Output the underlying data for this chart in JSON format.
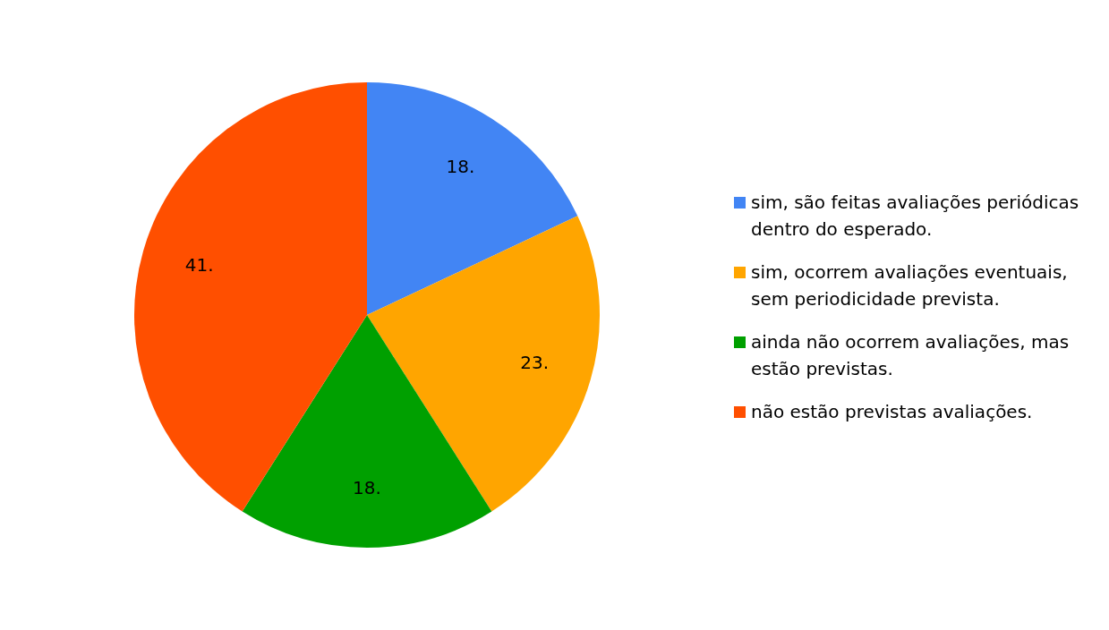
{
  "chart_data": {
    "type": "pie",
    "categories": [
      "sim, são feitas avaliações periódicas dentro do esperado.",
      "sim, ocorrem avaliações eventuais, sem periodicidade prevista.",
      "ainda não ocorrem avaliações, mas estão previstas.",
      "não estão previstas avaliações."
    ],
    "values": [
      18,
      23,
      18,
      41
    ],
    "value_labels": [
      "18.",
      "23.",
      "18.",
      "41."
    ],
    "colors": [
      "#4285f4",
      "#ffa500",
      "#00a000",
      "#ff4f00"
    ],
    "legend": "right"
  }
}
